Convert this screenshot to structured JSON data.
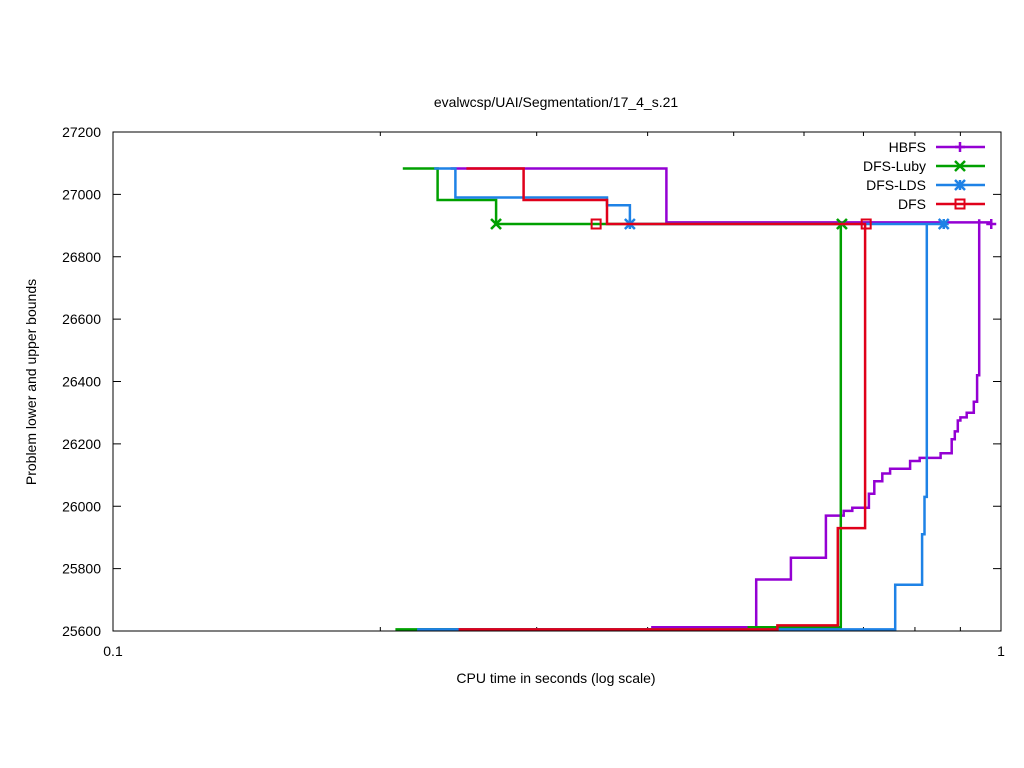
{
  "chart_data": {
    "type": "line",
    "title": "evalwcsp/UAI/Segmentation/17_4_s.21",
    "xlabel": "CPU time in seconds (log scale)",
    "ylabel": "Problem lower and upper bounds",
    "xscale": "log",
    "xlim": [
      0.1,
      1
    ],
    "ylim": [
      25600,
      27200
    ],
    "x_ticks": [
      {
        "value": 0.1,
        "label": "0.1"
      },
      {
        "value": 1,
        "label": "1"
      }
    ],
    "y_ticks": [
      {
        "value": 25600,
        "label": "25600"
      },
      {
        "value": 25800,
        "label": "25800"
      },
      {
        "value": 26000,
        "label": "26000"
      },
      {
        "value": 26200,
        "label": "26200"
      },
      {
        "value": 26400,
        "label": "26400"
      },
      {
        "value": 26600,
        "label": "26600"
      },
      {
        "value": 26800,
        "label": "26800"
      },
      {
        "value": 27000,
        "label": "27000"
      },
      {
        "value": 27200,
        "label": "27200"
      }
    ],
    "legend_position": "top-right",
    "series": [
      {
        "name": "HBFS",
        "color": "#9400d3",
        "marker": "plus",
        "upper": [
          [
            0.24,
            27083
          ],
          [
            0.42,
            27083
          ],
          [
            0.42,
            26910
          ],
          [
            0.975,
            26910
          ],
          [
            0.975,
            26905
          ]
        ],
        "lower": [
          [
            0.22,
            25605
          ],
          [
            0.405,
            25605
          ],
          [
            0.405,
            25612
          ],
          [
            0.53,
            25612
          ],
          [
            0.53,
            25765
          ],
          [
            0.58,
            25765
          ],
          [
            0.58,
            25835
          ],
          [
            0.635,
            25835
          ],
          [
            0.635,
            25970
          ],
          [
            0.665,
            25970
          ],
          [
            0.665,
            25985
          ],
          [
            0.68,
            25985
          ],
          [
            0.68,
            25995
          ],
          [
            0.71,
            25995
          ],
          [
            0.71,
            26040
          ],
          [
            0.72,
            26040
          ],
          [
            0.72,
            26080
          ],
          [
            0.735,
            26080
          ],
          [
            0.735,
            26105
          ],
          [
            0.75,
            26105
          ],
          [
            0.75,
            26120
          ],
          [
            0.79,
            26120
          ],
          [
            0.79,
            26145
          ],
          [
            0.81,
            26145
          ],
          [
            0.81,
            26155
          ],
          [
            0.855,
            26155
          ],
          [
            0.855,
            26170
          ],
          [
            0.88,
            26170
          ],
          [
            0.88,
            26215
          ],
          [
            0.887,
            26215
          ],
          [
            0.887,
            26240
          ],
          [
            0.894,
            26240
          ],
          [
            0.894,
            26275
          ],
          [
            0.9,
            26275
          ],
          [
            0.9,
            26285
          ],
          [
            0.915,
            26285
          ],
          [
            0.915,
            26300
          ],
          [
            0.932,
            26300
          ],
          [
            0.932,
            26335
          ],
          [
            0.94,
            26335
          ],
          [
            0.94,
            26420
          ],
          [
            0.945,
            26420
          ],
          [
            0.945,
            26920
          ]
        ],
        "markers": [
          [
            0.975,
            26905
          ]
        ]
      },
      {
        "name": "DFS-Luby",
        "color": "#00a000",
        "marker": "cross",
        "upper": [
          [
            0.212,
            27083
          ],
          [
            0.232,
            27083
          ],
          [
            0.232,
            26982
          ],
          [
            0.27,
            26982
          ],
          [
            0.27,
            26905
          ],
          [
            0.662,
            26905
          ]
        ],
        "lower": [
          [
            0.208,
            25605
          ],
          [
            0.52,
            25605
          ],
          [
            0.52,
            25612
          ],
          [
            0.66,
            25612
          ],
          [
            0.66,
            26905
          ]
        ],
        "markers": [
          [
            0.27,
            26905
          ],
          [
            0.662,
            26905
          ]
        ]
      },
      {
        "name": "DFS-LDS",
        "color": "#1e82e6",
        "marker": "star",
        "upper": [
          [
            0.23,
            27083
          ],
          [
            0.243,
            27083
          ],
          [
            0.243,
            26990
          ],
          [
            0.36,
            26990
          ],
          [
            0.36,
            26965
          ],
          [
            0.382,
            26965
          ],
          [
            0.382,
            26905
          ],
          [
            0.86,
            26905
          ]
        ],
        "lower": [
          [
            0.22,
            25605
          ],
          [
            0.76,
            25605
          ],
          [
            0.76,
            25748
          ],
          [
            0.815,
            25748
          ],
          [
            0.815,
            25910
          ],
          [
            0.82,
            25910
          ],
          [
            0.82,
            26030
          ],
          [
            0.825,
            26030
          ],
          [
            0.825,
            26905
          ]
        ],
        "markers": [
          [
            0.382,
            26905
          ],
          [
            0.862,
            26905
          ]
        ]
      },
      {
        "name": "DFS",
        "color": "#e0001a",
        "marker": "square",
        "upper": [
          [
            0.25,
            27083
          ],
          [
            0.29,
            27083
          ],
          [
            0.29,
            26982
          ],
          [
            0.36,
            26982
          ],
          [
            0.36,
            26905
          ],
          [
            0.705,
            26905
          ]
        ],
        "lower": [
          [
            0.245,
            25605
          ],
          [
            0.56,
            25605
          ],
          [
            0.56,
            25618
          ],
          [
            0.655,
            25618
          ],
          [
            0.655,
            25930
          ],
          [
            0.703,
            25930
          ],
          [
            0.703,
            26905
          ]
        ],
        "markers": [
          [
            0.35,
            26905
          ],
          [
            0.705,
            26905
          ]
        ]
      }
    ]
  }
}
